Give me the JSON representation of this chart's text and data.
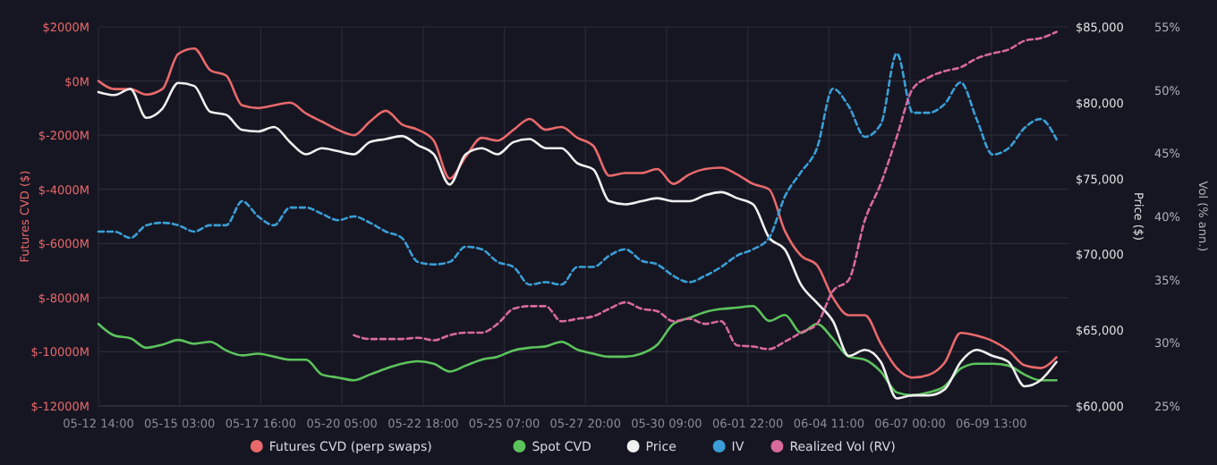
{
  "chart_data": {
    "type": "line",
    "ylabel": "Futures CVD ($)",
    "y2label": "Price ($)",
    "y3label": "Vol (% ann.)",
    "x": [
      "--05-12T14:00",
      "--05-13T02:00",
      "--05-13T14:00",
      "--05-14T02:00",
      "--05-14T14:00",
      "--05-15T02:00",
      "--05-15T14:00",
      "--05-16T02:00",
      "--05-16T14:00",
      "--05-17T02:00",
      "--05-17T14:00",
      "--05-18T02:00",
      "--05-18T14:00",
      "--05-19T02:00",
      "--05-19T14:00",
      "--05-20T02:00",
      "--05-20T14:00",
      "--05-21T02:00",
      "--05-21T14:00",
      "--05-22T02:00",
      "--05-22T14:00",
      "--05-23T02:00",
      "--05-23T14:00",
      "--05-24T02:00",
      "--05-24T14:00",
      "--05-25T02:00",
      "--05-25T14:00",
      "--05-26T02:00",
      "--05-26T14:00",
      "--05-27T02:00",
      "--05-27T14:00",
      "--05-28T02:00",
      "--05-28T14:00",
      "--05-29T02:00",
      "--05-29T14:00",
      "--05-30T02:00",
      "--05-30T14:00",
      "--05-31T02:00",
      "--05-31T14:00",
      "--06-01T02:00",
      "--06-01T14:00",
      "--06-02T02:00",
      "--06-02T14:00",
      "--06-03T02:00",
      "--06-03T14:00",
      "--06-04T02:00",
      "--06-04T14:00",
      "--06-05T02:00",
      "--06-05T14:00",
      "--06-06T02:00",
      "--06-06T14:00",
      "--06-07T02:00",
      "--06-07T14:00",
      "--06-08T02:00",
      "--06-08T14:00",
      "--06-09T02:00",
      "--06-09T14:00",
      "--06-10T02:00",
      "--06-10T14:00",
      "--06-11T02:00",
      "--06-11T14:00"
    ],
    "xlim": [
      "--05-12T14:00",
      "--06-11T23:00"
    ],
    "xticks": [
      {
        "value": "--05-12T14:00",
        "label": "05-12 14:00"
      },
      {
        "value": "--05-15T03:00",
        "label": "05-15 03:00"
      },
      {
        "value": "--05-17T16:00",
        "label": "05-17 16:00"
      },
      {
        "value": "--05-20T05:00",
        "label": "05-20 05:00"
      },
      {
        "value": "--05-22T18:00",
        "label": "05-22 18:00"
      },
      {
        "value": "--05-25T07:00",
        "label": "05-25 07:00"
      },
      {
        "value": "--05-27T20:00",
        "label": "05-27 20:00"
      },
      {
        "value": "--05-30T09:00",
        "label": "05-30 09:00"
      },
      {
        "value": "--06-01T22:00",
        "label": "06-01 22:00"
      },
      {
        "value": "--06-04T11:00",
        "label": "06-04 11:00"
      },
      {
        "value": "--06-07T00:00",
        "label": "06-07 00:00"
      },
      {
        "value": "--06-09T13:00",
        "label": "06-09 13:00"
      }
    ],
    "ylim": [
      -12000,
      2000
    ],
    "yticks": [
      {
        "value": 2000,
        "label": "$2000M"
      },
      {
        "value": 0,
        "label": "$0M"
      },
      {
        "value": -2000,
        "label": "$-2000M"
      },
      {
        "value": -4000,
        "label": "$-4000M"
      },
      {
        "value": -6000,
        "label": "$-6000M"
      },
      {
        "value": -8000,
        "label": "$-8000M"
      },
      {
        "value": -10000,
        "label": "$-10000M"
      },
      {
        "value": -12000,
        "label": "$-12000M"
      }
    ],
    "y2lim": [
      60000,
      85000
    ],
    "y2ticks": [
      {
        "value": 60000,
        "label": "$60,000"
      },
      {
        "value": 65000,
        "label": "$65,000"
      },
      {
        "value": 70000,
        "label": "$70,000"
      },
      {
        "value": 75000,
        "label": "$75,000"
      },
      {
        "value": 80000,
        "label": "$80,000"
      },
      {
        "value": 85000,
        "label": "$85,000"
      }
    ],
    "y3lim": [
      25,
      55
    ],
    "y3ticks": [
      {
        "value": 25,
        "label": "25%"
      },
      {
        "value": 30,
        "label": "30%"
      },
      {
        "value": 35,
        "label": "35%"
      },
      {
        "value": 40,
        "label": "40%"
      },
      {
        "value": 45,
        "label": "45%"
      },
      {
        "value": 50,
        "label": "50%"
      },
      {
        "value": 55,
        "label": "55%"
      }
    ],
    "grid": true,
    "legend": "bottom",
    "marker": "none",
    "series": [
      {
        "name": "Futures CVD (perp swaps)",
        "color": "#e8696b",
        "line_style": "solid",
        "values": [
          0,
          -300,
          -300,
          -500,
          -300,
          1000,
          1200,
          400,
          200,
          -900,
          -1000,
          -900,
          -800,
          -1200,
          -1500,
          -1800,
          -2000,
          -1500,
          -1100,
          -1600,
          -1800,
          -2200,
          -3600,
          -2800,
          -2100,
          -2200,
          -1800,
          -1400,
          -1800,
          -1700,
          -2100,
          -2400,
          -3500,
          -3400,
          -3400,
          -3250,
          -3800,
          -3450,
          -3250,
          -3200,
          -3450,
          -3800,
          -4000,
          -5550,
          -6450,
          -6800,
          -8000,
          -8650,
          -8650,
          -9700,
          -10600,
          -10950,
          -10850,
          -10400,
          -9300,
          -9400,
          -9600,
          -9950,
          -10500,
          -10600,
          -10200
        ]
      },
      {
        "name": "Spot CVD",
        "color": "#5cc35c",
        "line_style": "solid",
        "values": [
          -8970,
          -9400,
          -9500,
          -9850,
          -9740,
          -9560,
          -9700,
          -9630,
          -9950,
          -10130,
          -10070,
          -10180,
          -10290,
          -10290,
          -10840,
          -10950,
          -11050,
          -10840,
          -10620,
          -10440,
          -10350,
          -10440,
          -10730,
          -10510,
          -10290,
          -10180,
          -9950,
          -9850,
          -9800,
          -9630,
          -9920,
          -10070,
          -10180,
          -10180,
          -10070,
          -9740,
          -8970,
          -8750,
          -8530,
          -8420,
          -8370,
          -8310,
          -8860,
          -8640,
          -9300,
          -8970,
          -9520,
          -10180,
          -10290,
          -10730,
          -11500,
          -11600,
          -11500,
          -11270,
          -10620,
          -10440,
          -10440,
          -10510,
          -10840,
          -11050,
          -11050
        ]
      },
      {
        "name": "Price",
        "color": "#f0f0f0",
        "line_style": "solid",
        "axis": "y2",
        "values": [
          80700,
          80500,
          80900,
          79000,
          79600,
          81300,
          81100,
          79400,
          79200,
          78200,
          78100,
          78400,
          77400,
          76600,
          77000,
          76800,
          76600,
          77400,
          77600,
          77800,
          77200,
          76600,
          74600,
          76600,
          77000,
          76600,
          77400,
          77600,
          77000,
          77000,
          76000,
          75600,
          73500,
          73300,
          73500,
          73700,
          73500,
          73500,
          73900,
          74100,
          73700,
          73300,
          71100,
          70300,
          68000,
          66800,
          65600,
          63300,
          63700,
          62900,
          60500,
          60700,
          60700,
          61100,
          62900,
          63700,
          63300,
          62900,
          61300,
          61700,
          62900
        ]
      },
      {
        "name": "IV",
        "color": "#3a9fd6",
        "line_style": "dashed",
        "axis": "y3",
        "values": [
          38.8,
          38.8,
          38.3,
          39.3,
          39.5,
          39.3,
          38.8,
          39.3,
          39.3,
          41.2,
          40.0,
          39.3,
          40.7,
          40.7,
          40.2,
          39.7,
          40.0,
          39.5,
          38.8,
          38.3,
          36.4,
          36.2,
          36.4,
          37.6,
          37.4,
          36.4,
          36.0,
          34.6,
          34.8,
          34.6,
          36.0,
          36.0,
          36.9,
          37.4,
          36.5,
          36.2,
          35.3,
          34.8,
          35.3,
          36.0,
          36.9,
          37.4,
          38.3,
          41.6,
          43.5,
          45.4,
          50.1,
          48.7,
          46.3,
          47.3,
          52.9,
          48.2,
          48.2,
          48.9,
          50.6,
          47.7,
          44.9,
          45.4,
          47.0,
          47.7,
          46.1
        ]
      },
      {
        "name": "Realized Vol (RV)",
        "color": "#d96a9c",
        "line_style": "dashed",
        "axis": "y3",
        "values": [
          null,
          null,
          null,
          null,
          null,
          null,
          null,
          null,
          null,
          null,
          null,
          null,
          null,
          null,
          null,
          null,
          30.6,
          30.3,
          30.3,
          30.3,
          30.4,
          30.2,
          30.6,
          30.8,
          30.8,
          31.5,
          32.7,
          32.9,
          32.9,
          31.7,
          31.9,
          32.1,
          32.7,
          33.2,
          32.7,
          32.5,
          31.7,
          31.9,
          31.5,
          31.7,
          29.8,
          29.7,
          29.5,
          30.1,
          30.8,
          31.5,
          34.1,
          35.0,
          39.7,
          42.6,
          46.3,
          50.1,
          51.0,
          51.5,
          51.8,
          52.5,
          52.9,
          53.2,
          53.9,
          54.1,
          54.6
        ]
      }
    ]
  }
}
